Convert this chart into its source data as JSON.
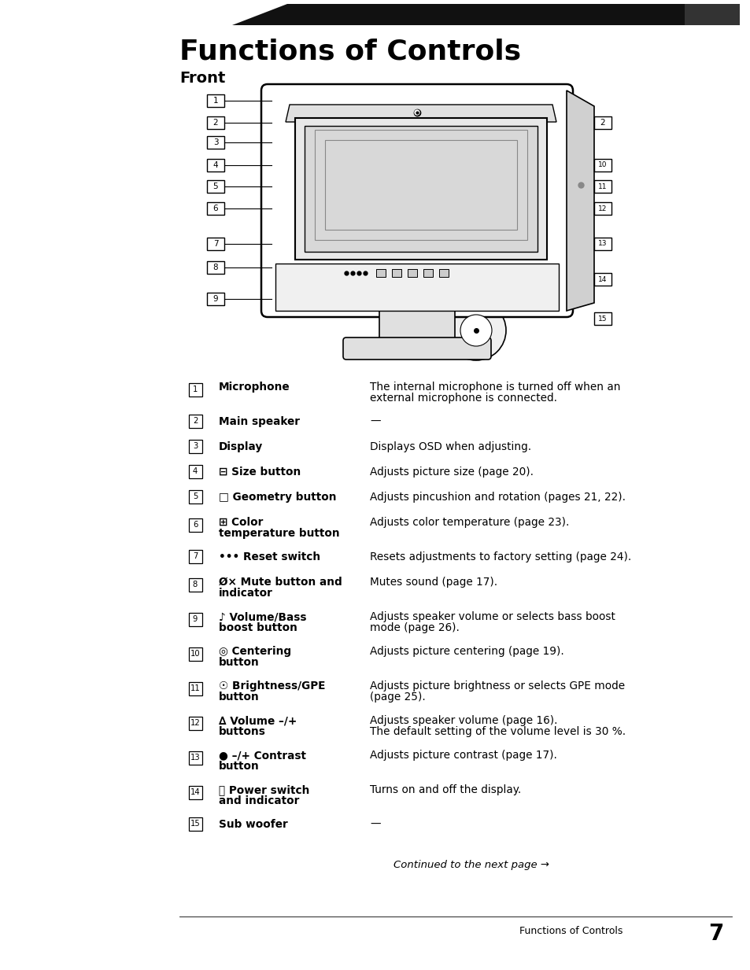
{
  "title": "Functions of Controls",
  "subtitle": "Front",
  "bg_color": "#ffffff",
  "items": [
    {
      "num": "1",
      "label": "Microphone",
      "label_bold": true,
      "desc": "The internal microphone is turned off when an\nexternal microphone is connected.",
      "two_line_label": false
    },
    {
      "num": "2",
      "label": "Main speaker",
      "label_bold": true,
      "desc": "—",
      "two_line_label": false
    },
    {
      "num": "3",
      "label": "Display",
      "label_bold": true,
      "desc": "Displays OSD when adjusting.",
      "two_line_label": false
    },
    {
      "num": "4",
      "label": "⊟ Size button",
      "label_bold": true,
      "desc": "Adjusts picture size (page 20).",
      "two_line_label": false
    },
    {
      "num": "5",
      "label": "□ Geometry button",
      "label_bold": true,
      "desc": "Adjusts pincushion and rotation (pages 21, 22).",
      "two_line_label": false
    },
    {
      "num": "6",
      "label": "⊞ Color\ntemperature button",
      "label_bold": true,
      "desc": "Adjusts color temperature (page 23).",
      "two_line_label": true
    },
    {
      "num": "7",
      "label": "••• Reset switch",
      "label_bold": true,
      "desc": "Resets adjustments to factory setting (page 24).",
      "two_line_label": false
    },
    {
      "num": "8",
      "label": "Ø× Mute button and\nindicator",
      "label_bold": true,
      "desc": "Mutes sound (page 17).",
      "two_line_label": true
    },
    {
      "num": "9",
      "label": "♪ Volume/Bass\nboost button",
      "label_bold": true,
      "desc": "Adjusts speaker volume or selects bass boost\nmode (page 26).",
      "two_line_label": true
    },
    {
      "num": "10",
      "label": "◎ Centering\nbutton",
      "label_bold": true,
      "desc": "Adjusts picture centering (page 19).",
      "two_line_label": true
    },
    {
      "num": "11",
      "label": "☉ Brightness/GPE\nbutton",
      "label_bold": true,
      "desc": "Adjusts picture brightness or selects GPE mode\n(page 25).",
      "two_line_label": true
    },
    {
      "num": "12",
      "label": "∆ Volume –/+\nbuttons",
      "label_bold": true,
      "desc": "Adjusts speaker volume (page 16).\nThe default setting of the volume level is 30 %.",
      "two_line_label": true
    },
    {
      "num": "13",
      "label": "● –/+ Contrast\nbutton",
      "label_bold": true,
      "desc": "Adjusts picture contrast (page 17).",
      "two_line_label": true
    },
    {
      "num": "14",
      "label": "⏻ Power switch\nand indicator",
      "label_bold": true,
      "desc": "Turns on and off the display.",
      "two_line_label": true
    },
    {
      "num": "15",
      "label": "Sub woofer",
      "label_bold": true,
      "desc": "—",
      "two_line_label": false
    }
  ],
  "footer_italic": "Continued to the next page →",
  "page_label": "Functions of Controls",
  "page_number": "7",
  "left_callouts": [
    "1",
    "2",
    "3",
    "4",
    "5",
    "6",
    "7",
    "8",
    "9"
  ],
  "right_callouts": [
    "2",
    "10",
    "11",
    "12",
    "13",
    "14",
    "15"
  ]
}
